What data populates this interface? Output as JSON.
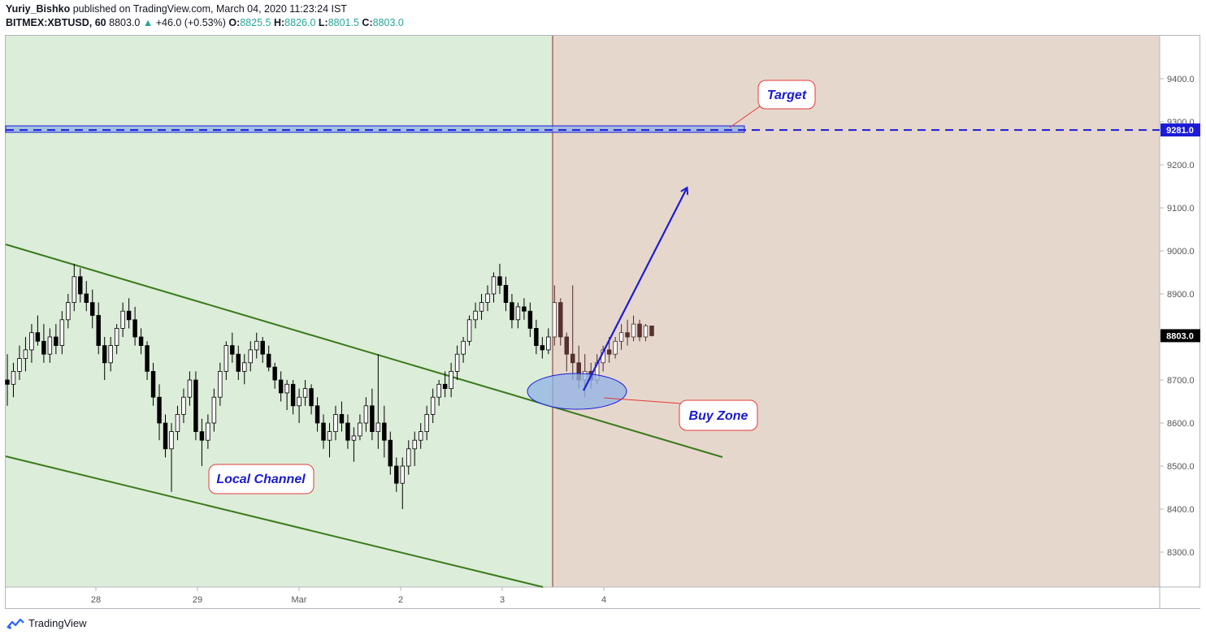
{
  "header": {
    "author": "Yuriy_Bishko",
    "published_text": "published on TradingView.com, March 04, 2020 11:23:24 IST",
    "symbol": "BITMEX:XBTUSD, 60",
    "last": "8803.0",
    "change": "+46.0 (+0.53%)",
    "o_label": "O:",
    "o_value": "8825.5",
    "h_label": "H:",
    "h_value": "8826.0",
    "l_label": "L:",
    "l_value": "8801.5",
    "c_label": "C:",
    "c_value": "8803.0"
  },
  "footer": {
    "brand": "TradingView"
  },
  "colors": {
    "bg_history": "#dcedd9",
    "bg_future": "#e6d7cd",
    "channel": "#3a7a1c",
    "target_line": "#1c1cd8",
    "arrow": "#1c1cd8",
    "label_text": "#1a1ad0",
    "label_border": "#e53935",
    "bull": "#ffffff",
    "bear": "#000000"
  },
  "chart_data": {
    "type": "candlestick",
    "symbol": "BITMEX:XBTUSD",
    "interval": "60",
    "y_ticks": [
      "9400.0",
      "9300.0",
      "9200.0",
      "9100.0",
      "9000.0",
      "8900.0",
      "8800.0",
      "8700.0",
      "8600.0",
      "8500.0",
      "8400.0",
      "8300.0"
    ],
    "x_ticks": [
      "28",
      "29",
      "Mar",
      "2",
      "3",
      "4"
    ],
    "price_labels": {
      "target": "9281.0",
      "last": "8803.0"
    },
    "annotations": [
      "Target",
      "Buy Zone",
      "Local Channel"
    ],
    "target_level": 9281.0,
    "last_price": 8803.0,
    "candles": [
      [
        8700,
        8760,
        8640,
        8690
      ],
      [
        8690,
        8740,
        8660,
        8720
      ],
      [
        8720,
        8780,
        8700,
        8750
      ],
      [
        8750,
        8800,
        8720,
        8770
      ],
      [
        8770,
        8830,
        8740,
        8810
      ],
      [
        8810,
        8850,
        8780,
        8790
      ],
      [
        8790,
        8830,
        8740,
        8760
      ],
      [
        8760,
        8820,
        8740,
        8800
      ],
      [
        8800,
        8830,
        8760,
        8780
      ],
      [
        8780,
        8860,
        8760,
        8840
      ],
      [
        8840,
        8900,
        8820,
        8880
      ],
      [
        8880,
        8970,
        8860,
        8940
      ],
      [
        8940,
        8960,
        8880,
        8900
      ],
      [
        8900,
        8930,
        8860,
        8880
      ],
      [
        8880,
        8910,
        8820,
        8850
      ],
      [
        8850,
        8880,
        8760,
        8780
      ],
      [
        8780,
        8800,
        8700,
        8740
      ],
      [
        8740,
        8800,
        8720,
        8780
      ],
      [
        8780,
        8830,
        8760,
        8820
      ],
      [
        8820,
        8880,
        8800,
        8860
      ],
      [
        8860,
        8890,
        8820,
        8840
      ],
      [
        8840,
        8870,
        8780,
        8800
      ],
      [
        8800,
        8820,
        8760,
        8780
      ],
      [
        8780,
        8790,
        8700,
        8720
      ],
      [
        8720,
        8740,
        8640,
        8660
      ],
      [
        8660,
        8690,
        8560,
        8600
      ],
      [
        8600,
        8620,
        8520,
        8540
      ],
      [
        8540,
        8600,
        8440,
        8580
      ],
      [
        8580,
        8640,
        8560,
        8620
      ],
      [
        8620,
        8680,
        8600,
        8660
      ],
      [
        8660,
        8720,
        8640,
        8700
      ],
      [
        8700,
        8720,
        8560,
        8580
      ],
      [
        8580,
        8610,
        8500,
        8560
      ],
      [
        8560,
        8620,
        8540,
        8600
      ],
      [
        8600,
        8680,
        8580,
        8660
      ],
      [
        8660,
        8740,
        8640,
        8720
      ],
      [
        8720,
        8790,
        8700,
        8780
      ],
      [
        8780,
        8810,
        8740,
        8760
      ],
      [
        8760,
        8780,
        8700,
        8720
      ],
      [
        8720,
        8760,
        8690,
        8740
      ],
      [
        8740,
        8790,
        8720,
        8770
      ],
      [
        8770,
        8810,
        8750,
        8790
      ],
      [
        8790,
        8800,
        8740,
        8760
      ],
      [
        8760,
        8780,
        8720,
        8730
      ],
      [
        8730,
        8740,
        8680,
        8700
      ],
      [
        8700,
        8720,
        8650,
        8670
      ],
      [
        8670,
        8700,
        8630,
        8690
      ],
      [
        8690,
        8700,
        8620,
        8640
      ],
      [
        8640,
        8680,
        8600,
        8660
      ],
      [
        8660,
        8700,
        8640,
        8680
      ],
      [
        8680,
        8690,
        8620,
        8640
      ],
      [
        8640,
        8660,
        8580,
        8600
      ],
      [
        8600,
        8620,
        8540,
        8560
      ],
      [
        8560,
        8600,
        8520,
        8580
      ],
      [
        8580,
        8640,
        8560,
        8620
      ],
      [
        8620,
        8650,
        8580,
        8600
      ],
      [
        8600,
        8620,
        8540,
        8560
      ],
      [
        8560,
        8590,
        8510,
        8570
      ],
      [
        8570,
        8620,
        8560,
        8600
      ],
      [
        8600,
        8660,
        8580,
        8640
      ],
      [
        8640,
        8680,
        8560,
        8580
      ],
      [
        8580,
        8760,
        8540,
        8600
      ],
      [
        8600,
        8640,
        8520,
        8560
      ],
      [
        8560,
        8580,
        8480,
        8500
      ],
      [
        8500,
        8520,
        8440,
        8460
      ],
      [
        8460,
        8520,
        8400,
        8500
      ],
      [
        8500,
        8560,
        8480,
        8540
      ],
      [
        8540,
        8580,
        8500,
        8560
      ],
      [
        8560,
        8600,
        8540,
        8580
      ],
      [
        8580,
        8640,
        8560,
        8620
      ],
      [
        8620,
        8680,
        8600,
        8660
      ],
      [
        8660,
        8700,
        8640,
        8690
      ],
      [
        8690,
        8720,
        8660,
        8680
      ],
      [
        8680,
        8740,
        8660,
        8720
      ],
      [
        8720,
        8780,
        8700,
        8760
      ],
      [
        8760,
        8800,
        8740,
        8790
      ],
      [
        8790,
        8850,
        8780,
        8840
      ],
      [
        8840,
        8880,
        8820,
        8860
      ],
      [
        8860,
        8900,
        8840,
        8880
      ],
      [
        8880,
        8920,
        8860,
        8900
      ],
      [
        8900,
        8950,
        8880,
        8940
      ],
      [
        8940,
        8970,
        8900,
        8920
      ],
      [
        8920,
        8940,
        8860,
        8880
      ],
      [
        8880,
        8900,
        8820,
        8840
      ],
      [
        8840,
        8880,
        8820,
        8870
      ],
      [
        8870,
        8890,
        8840,
        8860
      ],
      [
        8860,
        8880,
        8800,
        8820
      ],
      [
        8820,
        8840,
        8760,
        8780
      ],
      [
        8780,
        8800,
        8750,
        8770
      ],
      [
        8770,
        8820,
        8760,
        8800
      ],
      [
        8800,
        8920,
        8780,
        8880
      ],
      [
        8880,
        8890,
        8780,
        8800
      ],
      [
        8800,
        8810,
        8720,
        8760
      ],
      [
        8760,
        8920,
        8700,
        8740
      ],
      [
        8740,
        8780,
        8680,
        8700
      ],
      [
        8700,
        8760,
        8660,
        8720
      ],
      [
        8720,
        8740,
        8680,
        8700
      ],
      [
        8700,
        8760,
        8690,
        8740
      ],
      [
        8740,
        8780,
        8720,
        8770
      ],
      [
        8770,
        8800,
        8740,
        8760
      ],
      [
        8760,
        8800,
        8750,
        8790
      ],
      [
        8790,
        8830,
        8770,
        8810
      ],
      [
        8810,
        8840,
        8780,
        8800
      ],
      [
        8800,
        8850,
        8790,
        8830
      ],
      [
        8830,
        8840,
        8790,
        8800
      ],
      [
        8800,
        8830,
        8790,
        8826
      ],
      [
        8825.5,
        8826,
        8801.5,
        8803
      ]
    ]
  }
}
